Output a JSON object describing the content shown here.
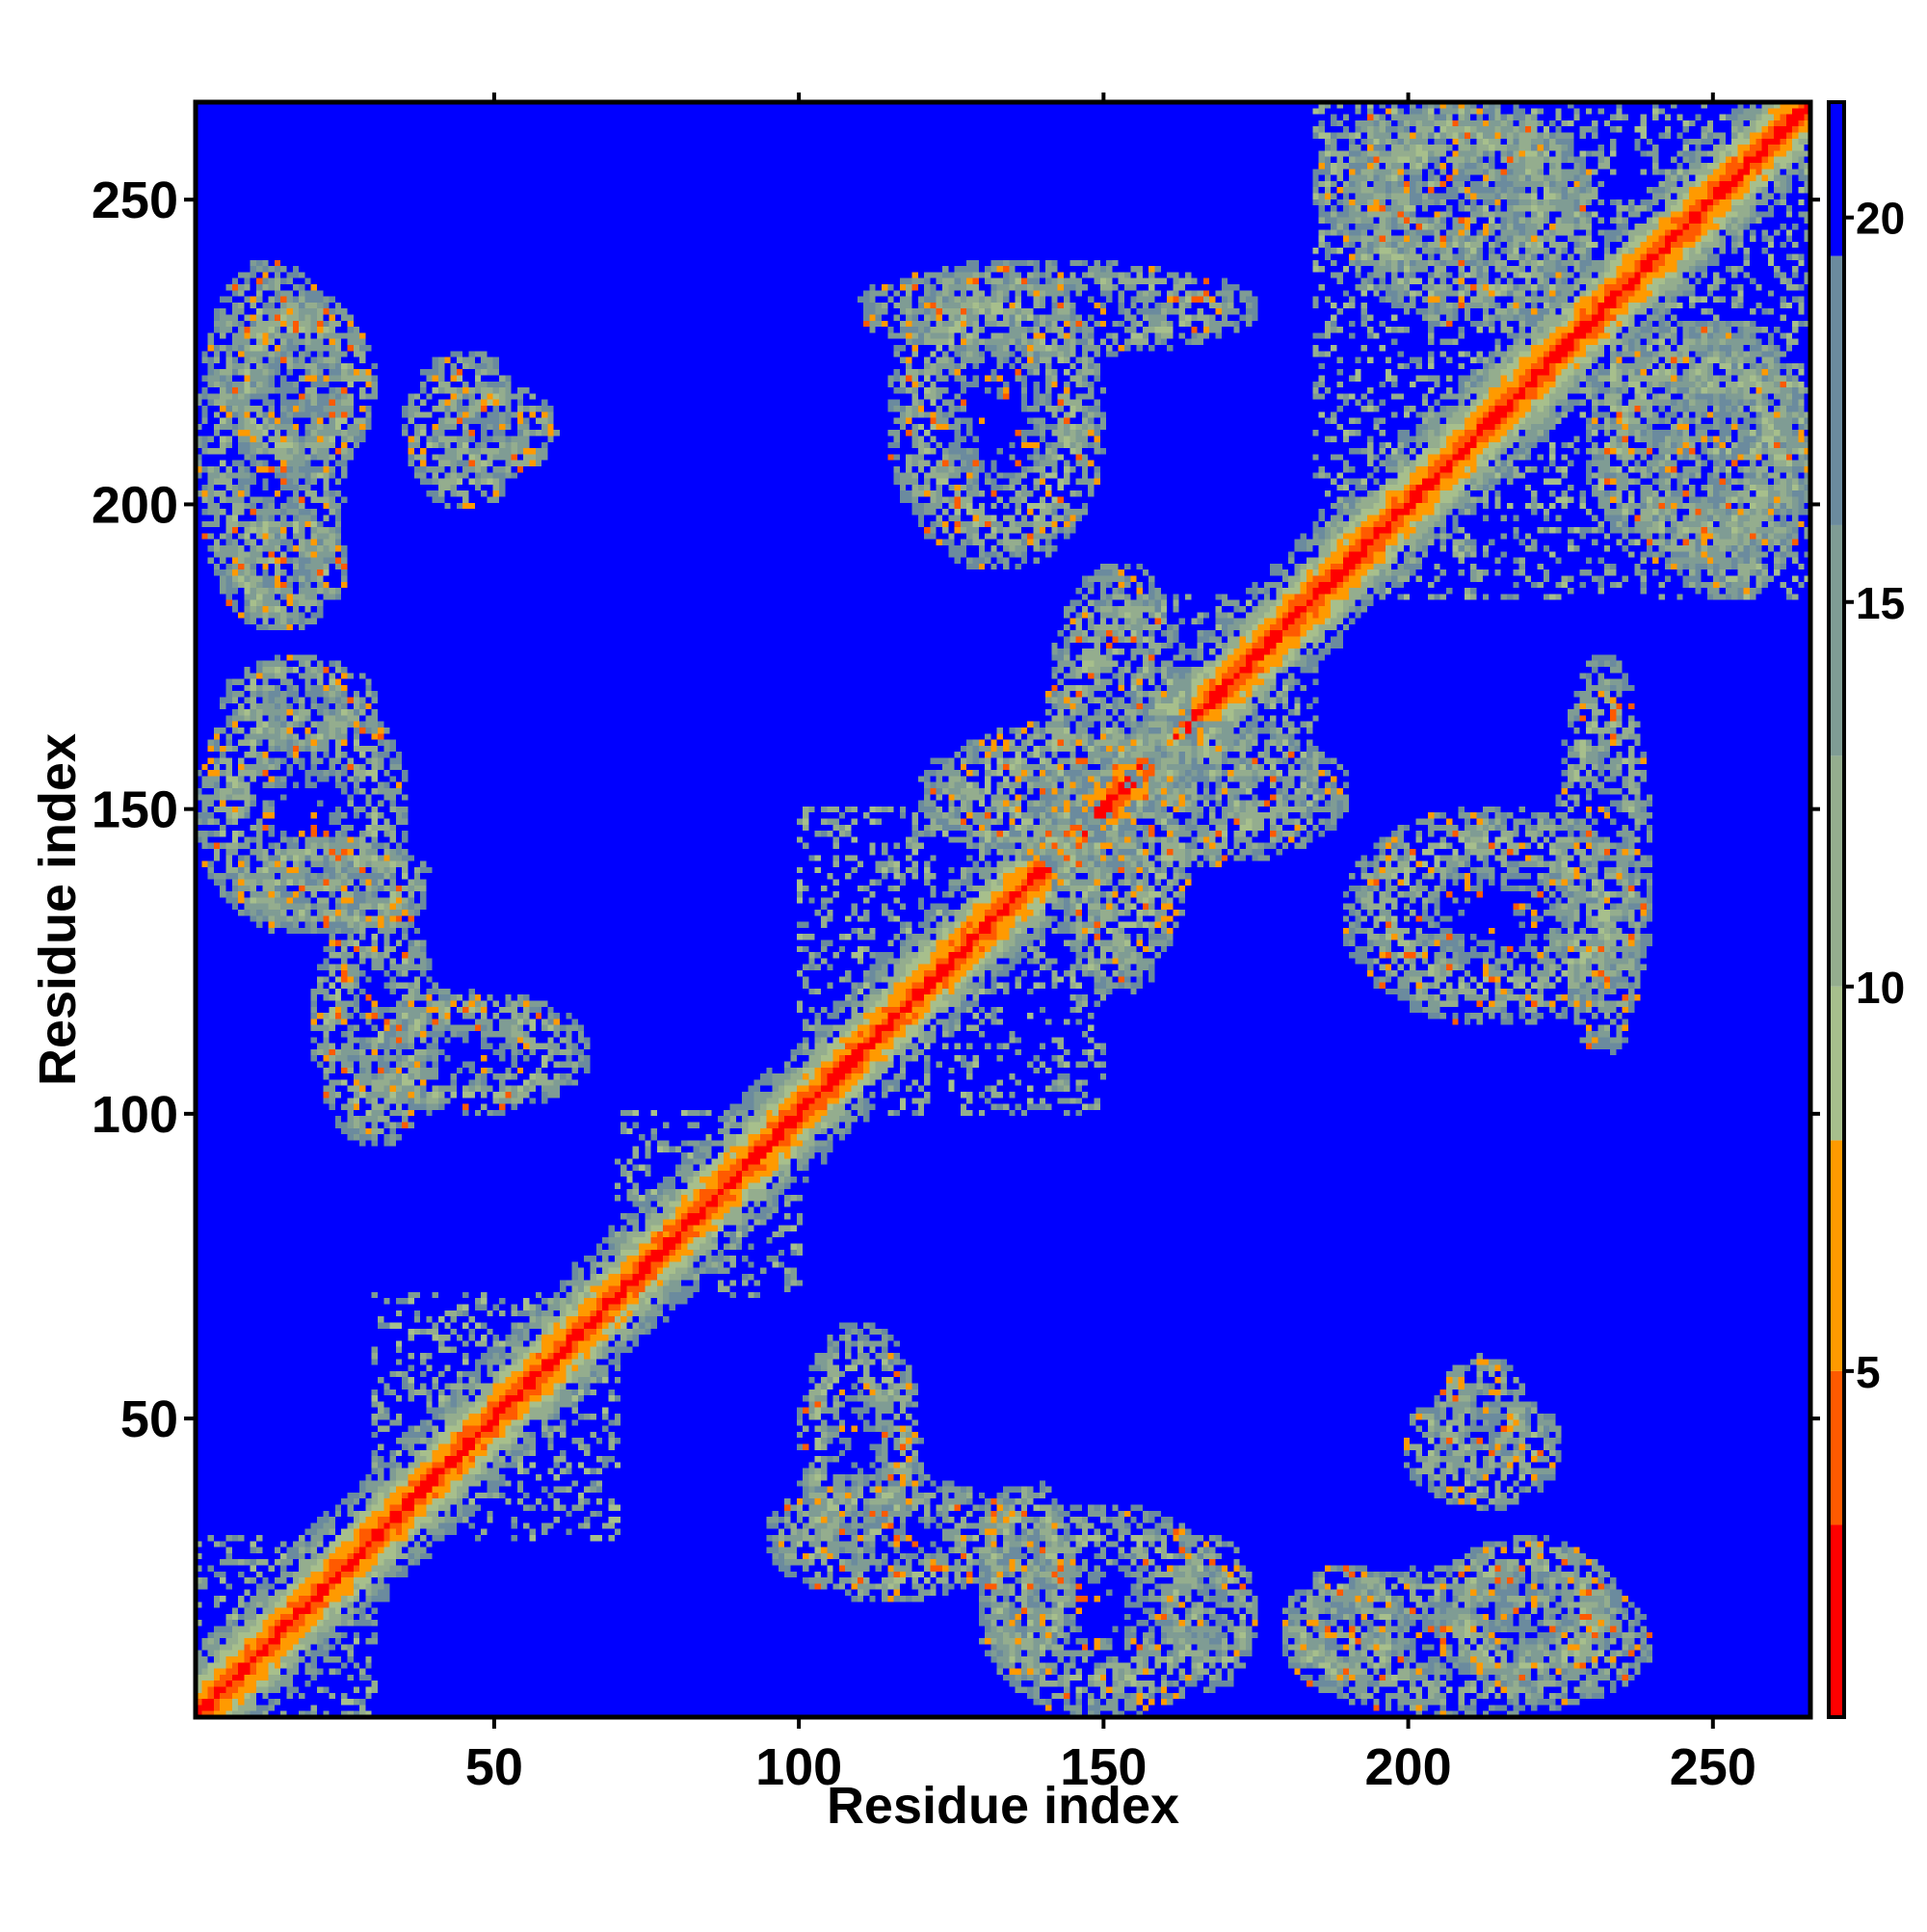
{
  "chart_data": {
    "type": "heatmap",
    "title": "",
    "xlabel": "Residue index",
    "ylabel": "Residue index",
    "xlim": [
      1,
      266
    ],
    "ylim": [
      1,
      266
    ],
    "x_ticks": [
      50,
      100,
      150,
      200,
      250
    ],
    "y_ticks": [
      50,
      100,
      150,
      200,
      250
    ],
    "colorbar": {
      "range": [
        0.5,
        21.5
      ],
      "ticks": [
        5,
        10,
        15,
        20
      ],
      "threshold_value": 8,
      "low_colors": [
        "#ff0000",
        "#ff5a00",
        "#ff9a00"
      ],
      "mid_colors": [
        "#a7bf8c",
        "#94ad8e",
        "#7f9c94",
        "#6b8b9e"
      ],
      "high_color": "#0000ff"
    },
    "description_of_values": "pairwise residue distance map; symmetric",
    "features": {
      "diagonal": {
        "from": 1,
        "to": 266
      },
      "secondary_structure_bands": [
        {
          "x": [
            1,
            30
          ],
          "y": [
            1,
            30
          ]
        },
        {
          "x": [
            30,
            70
          ],
          "y": [
            30,
            70
          ]
        },
        {
          "x": [
            70,
            100
          ],
          "y": [
            70,
            100
          ]
        },
        {
          "x": [
            100,
            150
          ],
          "y": [
            100,
            150
          ]
        },
        {
          "x": [
            150,
            185
          ],
          "y": [
            150,
            185
          ]
        },
        {
          "x": [
            185,
            266
          ],
          "y": [
            185,
            266
          ]
        }
      ],
      "off_diagonal_contacts": [
        {
          "x": [
            1,
            25
          ],
          "y": [
            180,
            240
          ]
        },
        {
          "x": [
            35,
            55
          ],
          "y": [
            200,
            225
          ]
        },
        {
          "x": [
            1,
            35
          ],
          "y": [
            130,
            170
          ]
        },
        {
          "x": [
            25,
            65
          ],
          "y": [
            100,
            120
          ]
        },
        {
          "x": [
            95,
            135
          ],
          "y": [
            20,
            40
          ]
        },
        {
          "x": [
            130,
            145
          ],
          "y": [
            5,
            40
          ]
        },
        {
          "x": [
            160,
            175
          ],
          "y": [
            5,
            30
          ]
        },
        {
          "x": [
            180,
            200
          ],
          "y": [
            5,
            25
          ]
        },
        {
          "x": [
            205,
            235
          ],
          "y": [
            5,
            30
          ]
        },
        {
          "x": [
            205,
            220
          ],
          "y": [
            40,
            60
          ]
        },
        {
          "x": [
            225,
            240
          ],
          "y": [
            110,
            175
          ]
        },
        {
          "x": [
            240,
            266
          ],
          "y": [
            185,
            230
          ]
        },
        {
          "x": [
            190,
            230
          ],
          "y": [
            230,
            266
          ]
        },
        {
          "x": [
            140,
            165
          ],
          "y": [
            120,
            190
          ]
        },
        {
          "x": [
            115,
            150
          ],
          "y": [
            190,
            240
          ]
        }
      ]
    }
  }
}
